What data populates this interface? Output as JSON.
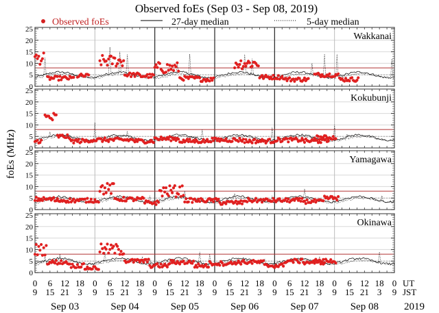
{
  "chart_data": {
    "type": "scatter",
    "title": "Observed foEs (Sep 03 - Sep 08, 2019)",
    "ylabel": "foEs (MHz)",
    "ylim": [
      0,
      25
    ],
    "yticks": [
      0,
      5,
      10,
      15,
      20,
      25
    ],
    "legend": {
      "placement": "top",
      "entries": [
        {
          "label": "Observed foEs",
          "style": "red-dot"
        },
        {
          "label": "27-day median",
          "style": "solid-line"
        },
        {
          "label": "5-day median",
          "style": "dotted-line"
        }
      ]
    },
    "x_axis": {
      "unit_label_ut": "UT",
      "unit_label_jst": "JST",
      "ut_ticks": [
        "0",
        "6",
        "12",
        "18",
        "0",
        "6",
        "12",
        "18",
        "0",
        "6",
        "12",
        "18",
        "0",
        "6",
        "12",
        "18",
        "0",
        "6",
        "12",
        "18",
        "0",
        "6",
        "12",
        "18",
        "0"
      ],
      "jst_ticks": [
        "9",
        "15",
        "21",
        "3",
        "9",
        "15",
        "21",
        "3",
        "9",
        "15",
        "21",
        "3",
        "9",
        "15",
        "21",
        "3",
        "9",
        "15",
        "21",
        "3",
        "9",
        "15",
        "21",
        "3",
        "9"
      ],
      "days": [
        "Sep 03",
        "Sep 04",
        "Sep 05",
        "Sep 06",
        "Sep 07",
        "Sep 08"
      ],
      "year": "2019",
      "range_hours": [
        0,
        144
      ]
    },
    "threshold_mhz": 8,
    "colors": {
      "observed": "#e02020",
      "threshold": "#b03030",
      "median27": "#000000",
      "median5": "#000000",
      "grid": "#d0d0d0"
    },
    "panels": [
      {
        "station": "Wakkanai",
        "median27_level": 5,
        "spikes": [
          [
            4,
            12.5
          ],
          [
            30,
            17
          ],
          [
            34,
            15
          ],
          [
            37,
            14
          ],
          [
            57,
            10
          ],
          [
            62,
            14
          ],
          [
            84,
            14
          ],
          [
            87,
            12
          ],
          [
            111,
            10
          ],
          [
            116,
            14
          ],
          [
            121,
            14
          ],
          [
            143,
            12
          ]
        ],
        "observed_clusters": [
          [
            0,
            4,
            12
          ],
          [
            5,
            16,
            3.5
          ],
          [
            17,
            22,
            4.5
          ],
          [
            26,
            36,
            11
          ],
          [
            36,
            42,
            5
          ],
          [
            42,
            48,
            4.5
          ],
          [
            48,
            58,
            8
          ],
          [
            58,
            66,
            3.5
          ],
          [
            66,
            72,
            3
          ],
          [
            80,
            90,
            10
          ],
          [
            90,
            100,
            4
          ],
          [
            100,
            110,
            3
          ],
          [
            112,
            122,
            5
          ],
          [
            122,
            130,
            3
          ]
        ]
      },
      {
        "station": "Kokubunji",
        "median27_level": 4.5,
        "spikes": [
          [
            6,
            7
          ],
          [
            24,
            11
          ],
          [
            37,
            7
          ],
          [
            67,
            8
          ],
          [
            95,
            9
          ],
          [
            120,
            10
          ],
          [
            125,
            6
          ]
        ],
        "observed_clusters": [
          [
            0,
            3,
            3
          ],
          [
            4,
            9,
            13
          ],
          [
            9,
            14,
            5
          ],
          [
            14,
            22,
            3
          ],
          [
            22,
            30,
            3.5
          ],
          [
            30,
            40,
            3.5
          ],
          [
            40,
            48,
            3
          ],
          [
            48,
            58,
            4
          ],
          [
            58,
            70,
            3
          ],
          [
            70,
            84,
            3.5
          ],
          [
            84,
            96,
            3
          ],
          [
            96,
            108,
            3.5
          ],
          [
            108,
            118,
            3
          ],
          [
            112,
            121,
            4.5
          ]
        ]
      },
      {
        "station": "Yamagawa",
        "median27_level": 4.5,
        "spikes": [
          [
            20,
            5
          ],
          [
            30,
            6
          ],
          [
            46,
            6
          ],
          [
            60,
            8
          ],
          [
            80,
            7
          ],
          [
            95,
            6
          ],
          [
            108,
            9
          ],
          [
            139,
            6
          ]
        ],
        "observed_clusters": [
          [
            0,
            8,
            4.5
          ],
          [
            8,
            16,
            4
          ],
          [
            16,
            26,
            4
          ],
          [
            26,
            32,
            9
          ],
          [
            32,
            44,
            4.5
          ],
          [
            44,
            50,
            3
          ],
          [
            50,
            60,
            8
          ],
          [
            60,
            74,
            4
          ],
          [
            74,
            84,
            3
          ],
          [
            84,
            96,
            4
          ],
          [
            96,
            108,
            4
          ],
          [
            108,
            116,
            3.5
          ],
          [
            116,
            122,
            5
          ]
        ]
      },
      {
        "station": "Okinawa",
        "median27_level": 5,
        "spikes": [
          [
            4,
            7
          ],
          [
            10,
            8
          ],
          [
            28,
            9
          ],
          [
            43,
            7
          ],
          [
            46,
            6
          ],
          [
            66,
            9
          ],
          [
            70,
            8
          ],
          [
            92,
            6
          ],
          [
            114,
            7
          ],
          [
            138,
            9
          ]
        ],
        "observed_clusters": [
          [
            0,
            5,
            10
          ],
          [
            5,
            14,
            4.5
          ],
          [
            14,
            20,
            3
          ],
          [
            20,
            26,
            2
          ],
          [
            26,
            36,
            10
          ],
          [
            36,
            46,
            5
          ],
          [
            46,
            54,
            3
          ],
          [
            54,
            64,
            4.5
          ],
          [
            64,
            70,
            3
          ],
          [
            70,
            80,
            4
          ],
          [
            80,
            92,
            4.5
          ],
          [
            92,
            100,
            3
          ],
          [
            100,
            108,
            5
          ],
          [
            108,
            116,
            4.5
          ],
          [
            112,
            121,
            5
          ]
        ]
      }
    ]
  }
}
